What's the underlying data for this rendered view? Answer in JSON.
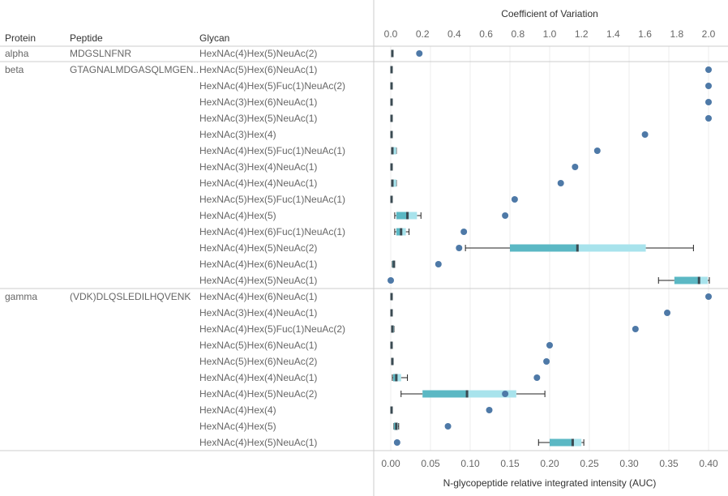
{
  "headers": {
    "protein": "Protein",
    "peptide": "Peptide",
    "glycan": "Glycan",
    "top_axis_title": "Coefficient of Variation",
    "bottom_axis_title": "N-glycopeptide relative integrated intensity (AUC)"
  },
  "colors": {
    "box_lower": "#5bb8c4",
    "box_upper": "#a8e3ec",
    "median": "#3a4a52",
    "dot": "#4e79a7",
    "whisker": "#222222",
    "grid": "#eeeeee",
    "divider": "#cccccc"
  },
  "chart_data": {
    "type": "box-and-dot",
    "top_axis": {
      "title": "Coefficient of Variation",
      "ticks": [
        "0.0",
        "0.2",
        "0.4",
        "0.6",
        "0.8",
        "1.0",
        "1.2",
        "1.4",
        "1.6",
        "1.8",
        "2.0"
      ],
      "range": [
        0,
        2.0
      ]
    },
    "bottom_axis": {
      "title": "N-glycopeptide relative integrated intensity (AUC)",
      "ticks": [
        "0.00",
        "0.05",
        "0.10",
        "0.15",
        "0.20",
        "0.25",
        "0.30",
        "0.35",
        "0.40"
      ],
      "range": [
        0,
        0.4
      ]
    },
    "groups": [
      {
        "protein": "alpha",
        "peptide": "MDGSLNFNR",
        "rows": [
          {
            "glycan": "HexNAc(4)Hex(5)NeuAc(2)",
            "cv": 0.18,
            "auc": {
              "min": 0.002,
              "q1": 0.002,
              "median": 0.002,
              "q3": 0.002,
              "max": 0.002
            }
          }
        ]
      },
      {
        "protein": "beta",
        "peptide": "GTAGNALMDGASQLMGEN..",
        "rows": [
          {
            "glycan": "HexNAc(5)Hex(6)NeuAc(1)",
            "cv": 2.0,
            "auc": {
              "min": 0.001,
              "q1": 0.001,
              "median": 0.001,
              "q3": 0.001,
              "max": 0.001
            }
          },
          {
            "glycan": "HexNAc(4)Hex(5)Fuc(1)NeuAc(2)",
            "cv": 2.0,
            "auc": {
              "min": 0.001,
              "q1": 0.001,
              "median": 0.001,
              "q3": 0.001,
              "max": 0.001
            }
          },
          {
            "glycan": "HexNAc(3)Hex(6)NeuAc(1)",
            "cv": 2.0,
            "auc": {
              "min": 0.001,
              "q1": 0.001,
              "median": 0.001,
              "q3": 0.001,
              "max": 0.001
            }
          },
          {
            "glycan": "HexNAc(3)Hex(5)NeuAc(1)",
            "cv": 2.0,
            "auc": {
              "min": 0.001,
              "q1": 0.001,
              "median": 0.001,
              "q3": 0.001,
              "max": 0.001
            }
          },
          {
            "glycan": "HexNAc(3)Hex(4)",
            "cv": 1.6,
            "auc": {
              "min": 0.001,
              "q1": 0.001,
              "median": 0.001,
              "q3": 0.001,
              "max": 0.001
            }
          },
          {
            "glycan": "HexNAc(4)Hex(5)Fuc(1)NeuAc(1)",
            "cv": 1.3,
            "auc": {
              "min": 0.001,
              "q1": 0.001,
              "median": 0.002,
              "q3": 0.007,
              "max": 0.007
            }
          },
          {
            "glycan": "HexNAc(3)Hex(4)NeuAc(1)",
            "cv": 1.16,
            "auc": {
              "min": 0.001,
              "q1": 0.001,
              "median": 0.001,
              "q3": 0.001,
              "max": 0.001
            }
          },
          {
            "glycan": "HexNAc(4)Hex(4)NeuAc(1)",
            "cv": 1.07,
            "auc": {
              "min": 0.001,
              "q1": 0.001,
              "median": 0.002,
              "q3": 0.007,
              "max": 0.007
            }
          },
          {
            "glycan": "HexNAc(5)Hex(5)Fuc(1)NeuAc(1)",
            "cv": 0.78,
            "auc": {
              "min": 0.001,
              "q1": 0.001,
              "median": 0.001,
              "q3": 0.001,
              "max": 0.001
            }
          },
          {
            "glycan": "HexNAc(4)Hex(5)",
            "cv": 0.72,
            "auc": {
              "min": 0.005,
              "q1": 0.007,
              "median": 0.021,
              "q3": 0.033,
              "max": 0.038
            }
          },
          {
            "glycan": "HexNAc(4)Hex(6)Fuc(1)NeuAc(1)",
            "cv": 0.46,
            "auc": {
              "min": 0.005,
              "q1": 0.007,
              "median": 0.013,
              "q3": 0.019,
              "max": 0.023
            }
          },
          {
            "glycan": "HexNAc(4)Hex(5)NeuAc(2)",
            "cv": 0.43,
            "auc": {
              "min": 0.094,
              "q1": 0.15,
              "median": 0.235,
              "q3": 0.321,
              "max": 0.381
            }
          },
          {
            "glycan": "HexNAc(4)Hex(6)NeuAc(1)",
            "cv": 0.3,
            "auc": {
              "min": 0.002,
              "q1": 0.002,
              "median": 0.004,
              "q3": 0.004,
              "max": 0.004
            }
          },
          {
            "glycan": "HexNAc(4)Hex(5)NeuAc(1)",
            "cv": 0.0,
            "auc": {
              "min": 0.337,
              "q1": 0.357,
              "median": 0.388,
              "q3": 0.399,
              "max": 0.401
            }
          }
        ]
      },
      {
        "protein": "gamma",
        "peptide": "(VDK)DLQSLEDILHQVENK",
        "rows": [
          {
            "glycan": "HexNAc(4)Hex(6)NeuAc(1)",
            "cv": 2.0,
            "auc": {
              "min": 0.001,
              "q1": 0.001,
              "median": 0.001,
              "q3": 0.001,
              "max": 0.001
            }
          },
          {
            "glycan": "HexNAc(3)Hex(4)NeuAc(1)",
            "cv": 1.74,
            "auc": {
              "min": 0.001,
              "q1": 0.001,
              "median": 0.001,
              "q3": 0.001,
              "max": 0.001
            }
          },
          {
            "glycan": "HexNAc(4)Hex(5)Fuc(1)NeuAc(2)",
            "cv": 1.54,
            "auc": {
              "min": 0.001,
              "q1": 0.001,
              "median": 0.002,
              "q3": 0.004,
              "max": 0.004
            }
          },
          {
            "glycan": "HexNAc(5)Hex(6)NeuAc(1)",
            "cv": 1.0,
            "auc": {
              "min": 0.001,
              "q1": 0.001,
              "median": 0.001,
              "q3": 0.001,
              "max": 0.001
            }
          },
          {
            "glycan": "HexNAc(5)Hex(6)NeuAc(2)",
            "cv": 0.98,
            "auc": {
              "min": 0.001,
              "q1": 0.001,
              "median": 0.002,
              "q3": 0.003,
              "max": 0.003
            }
          },
          {
            "glycan": "HexNAc(4)Hex(4)NeuAc(1)",
            "cv": 0.92,
            "auc": {
              "min": 0.002,
              "q1": 0.003,
              "median": 0.007,
              "q3": 0.013,
              "max": 0.021
            }
          },
          {
            "glycan": "HexNAc(4)Hex(5)NeuAc(2)",
            "cv": 0.72,
            "auc": {
              "min": 0.013,
              "q1": 0.04,
              "median": 0.096,
              "q3": 0.158,
              "max": 0.194
            }
          },
          {
            "glycan": "HexNAc(4)Hex(4)",
            "cv": 0.62,
            "auc": {
              "min": 0.001,
              "q1": 0.001,
              "median": 0.001,
              "q3": 0.001,
              "max": 0.001
            }
          },
          {
            "glycan": "HexNAc(4)Hex(5)",
            "cv": 0.36,
            "auc": {
              "min": 0.004,
              "q1": 0.004,
              "median": 0.007,
              "q3": 0.009,
              "max": 0.01
            }
          },
          {
            "glycan": "HexNAc(4)Hex(5)NeuAc(1)",
            "cv": 0.04,
            "auc": {
              "min": 0.186,
              "q1": 0.2,
              "median": 0.229,
              "q3": 0.24,
              "max": 0.243
            }
          }
        ]
      }
    ]
  }
}
